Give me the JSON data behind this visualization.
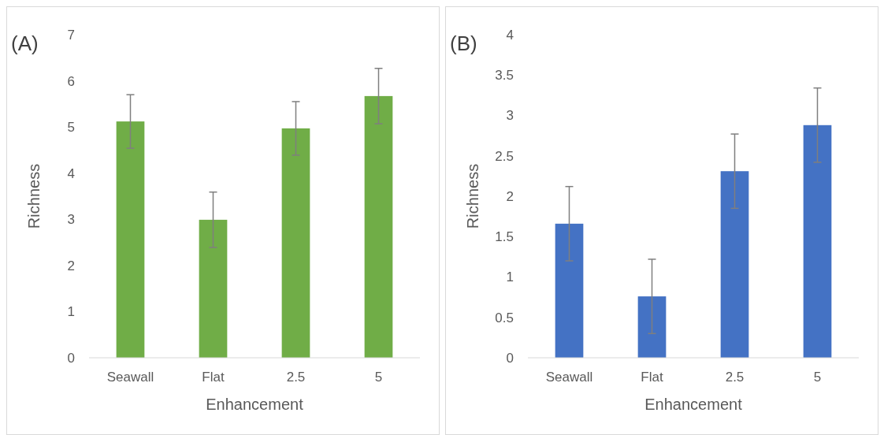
{
  "chart_data": [
    {
      "type": "bar",
      "title": "(A)",
      "xlabel": "Enhancement",
      "ylabel": "Richness",
      "categories": [
        "Seawall",
        "Flat",
        "2.5",
        "5"
      ],
      "values": [
        5.12,
        2.99,
        4.97,
        5.67
      ],
      "errors": [
        0.58,
        0.6,
        0.58,
        0.6
      ],
      "color": "#70ad47",
      "ylim": [
        0,
        7
      ],
      "yticks": [
        0,
        1,
        2,
        3,
        4,
        5,
        6,
        7
      ],
      "grid": false
    },
    {
      "type": "bar",
      "title": "(B)",
      "xlabel": "Enhancement",
      "ylabel": "Richness",
      "categories": [
        "Seawall",
        "Flat",
        "2.5",
        "5"
      ],
      "values": [
        1.66,
        0.76,
        2.31,
        2.88
      ],
      "errors": [
        0.46,
        0.46,
        0.46,
        0.46
      ],
      "color": "#4472c4",
      "ylim": [
        0,
        4
      ],
      "yticks": [
        0,
        0.5,
        1,
        1.5,
        2,
        2.5,
        3,
        3.5,
        4
      ],
      "grid": false
    }
  ]
}
